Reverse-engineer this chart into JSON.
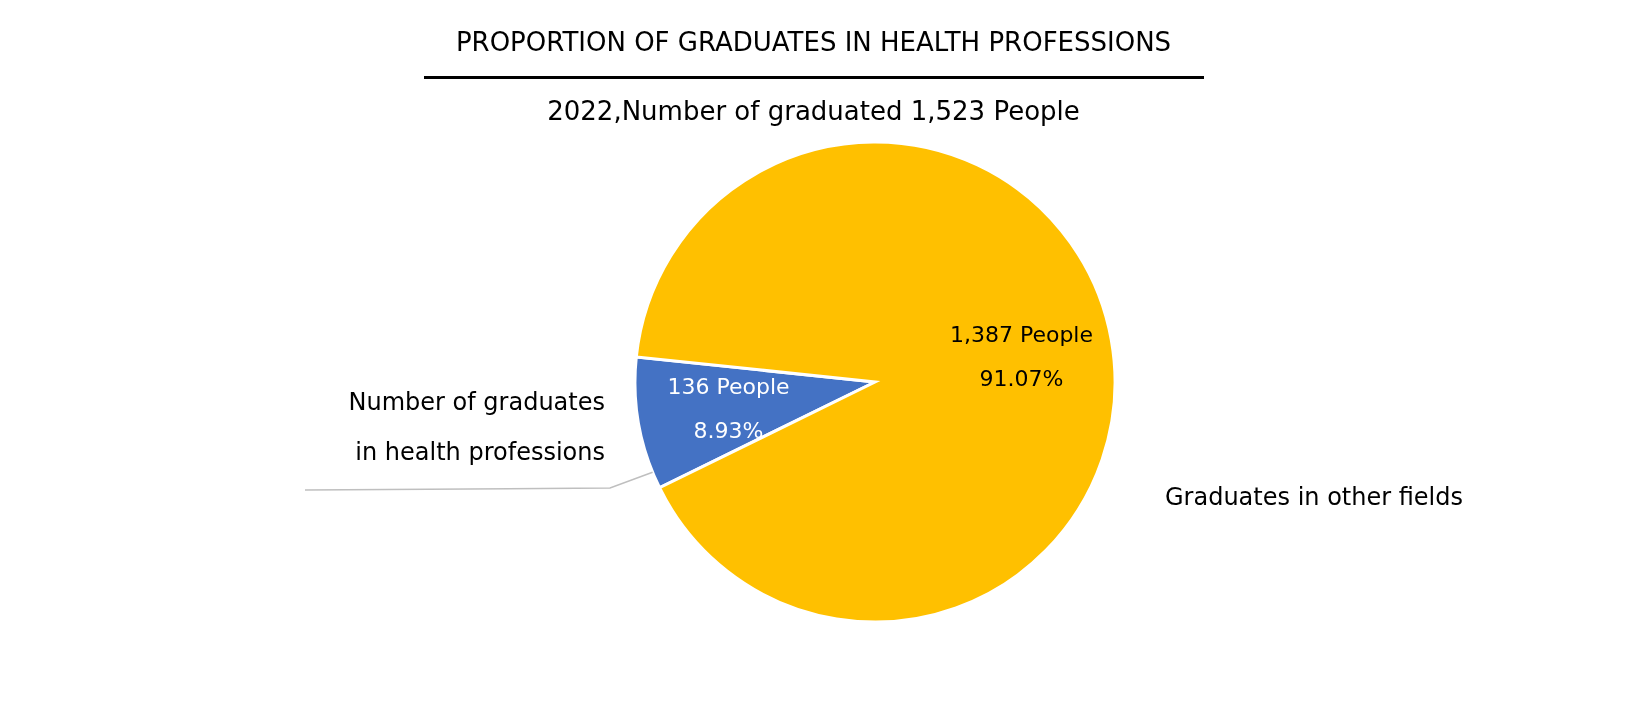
{
  "chart_data": {
    "type": "pie",
    "title": "PROPORTION OF GRADUATES IN HEALTH PROFESSIONS",
    "subtitle": "2022,Number of graduated 1,523 People",
    "categories": [
      "Number of graduates in health professions",
      "Graduates in other fields"
    ],
    "values": [
      136,
      1387
    ],
    "colors": [
      "#4472c4",
      "#ffc000"
    ],
    "value_labels": [
      "136 People\n8.93%",
      "1,387 People\n91.07%"
    ]
  }
}
